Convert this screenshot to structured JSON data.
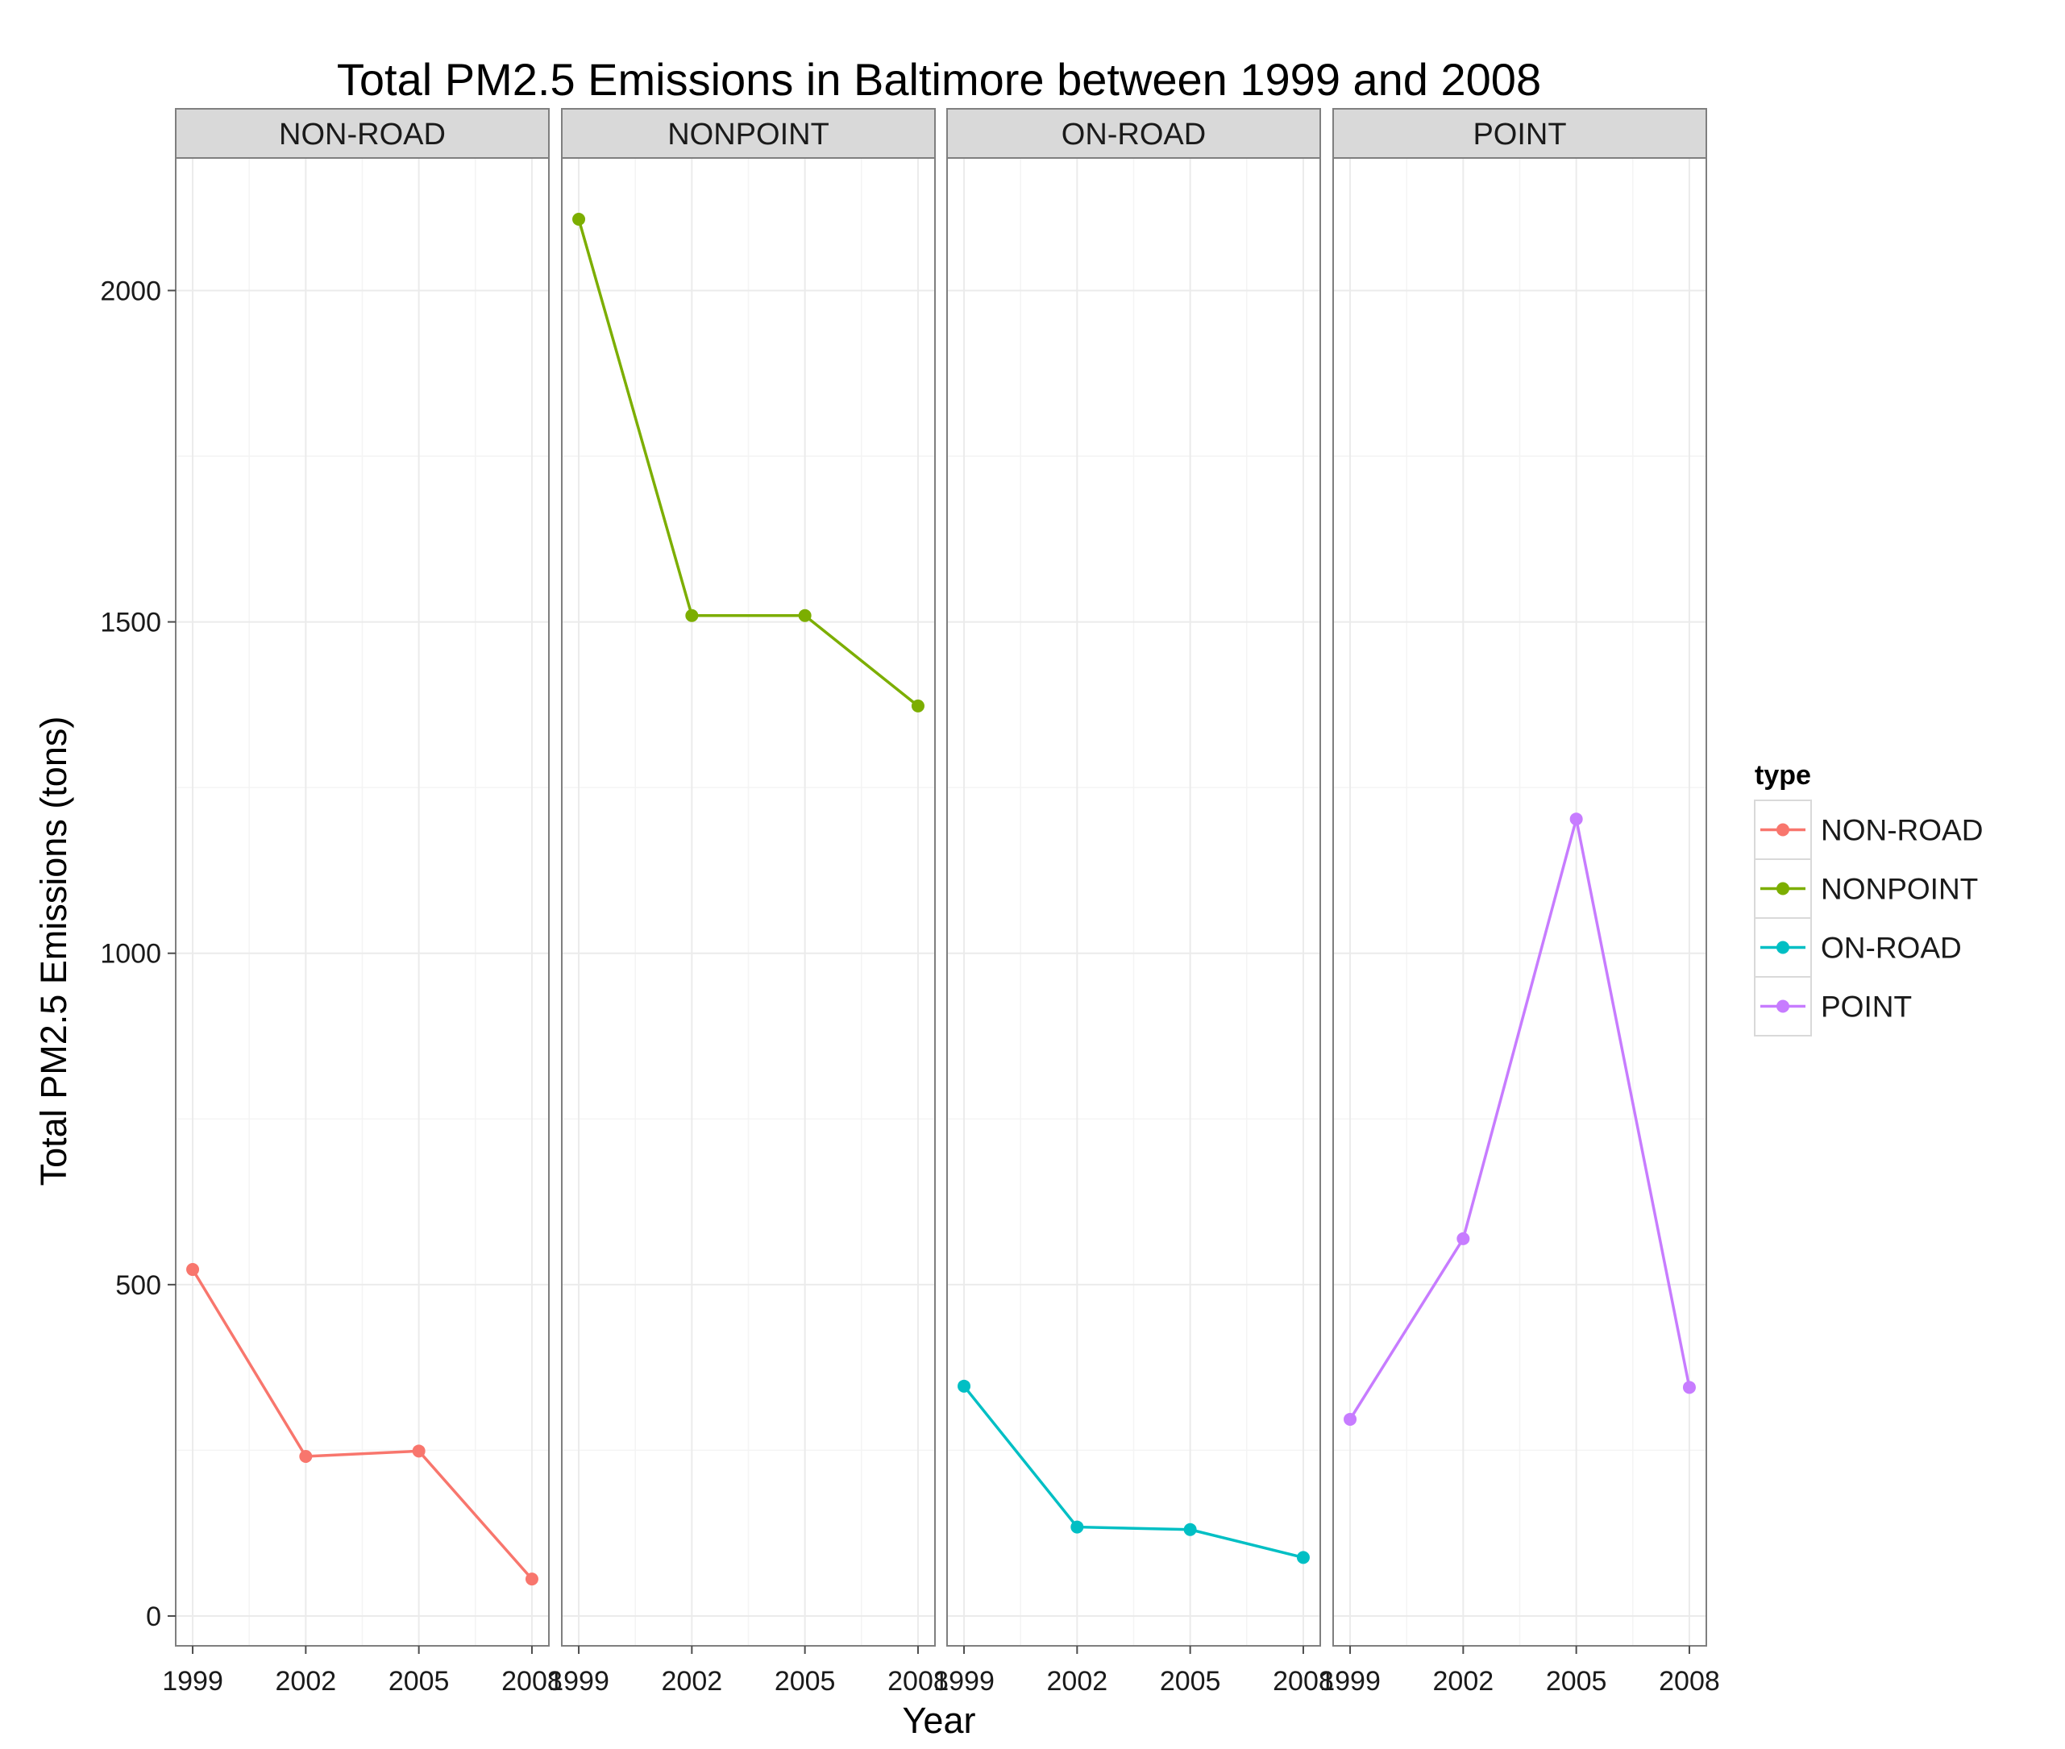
{
  "chart_data": {
    "type": "line",
    "title": "Total PM2.5 Emissions in Baltimore between 1999 and 2008",
    "xlabel": "Year",
    "ylabel": "Total PM2.5 Emissions (tons)",
    "x": [
      1999,
      2002,
      2005,
      2008
    ],
    "xticks": [
      "1999",
      "2002",
      "2005",
      "2008"
    ],
    "yticks": [
      "0",
      "500",
      "1000",
      "1500",
      "2000"
    ],
    "ylim": [
      -45,
      2200
    ],
    "grid": true,
    "legend_title": "type",
    "legend_position": "right",
    "facet_by": "type",
    "series": [
      {
        "name": "NON-ROAD",
        "color": "#F8766D",
        "values": [
          522.9,
          240.8,
          248.9,
          55.8
        ]
      },
      {
        "name": "NONPOINT",
        "color": "#7CAE00",
        "values": [
          2107.6,
          1509.5,
          1509.5,
          1373.2
        ]
      },
      {
        "name": "ON-ROAD",
        "color": "#00BFC4",
        "values": [
          346.8,
          134.3,
          130.4,
          88.3
        ]
      },
      {
        "name": "POINT",
        "color": "#C77CFF",
        "values": [
          296.8,
          569.3,
          1202.5,
          344.98
        ]
      }
    ]
  }
}
